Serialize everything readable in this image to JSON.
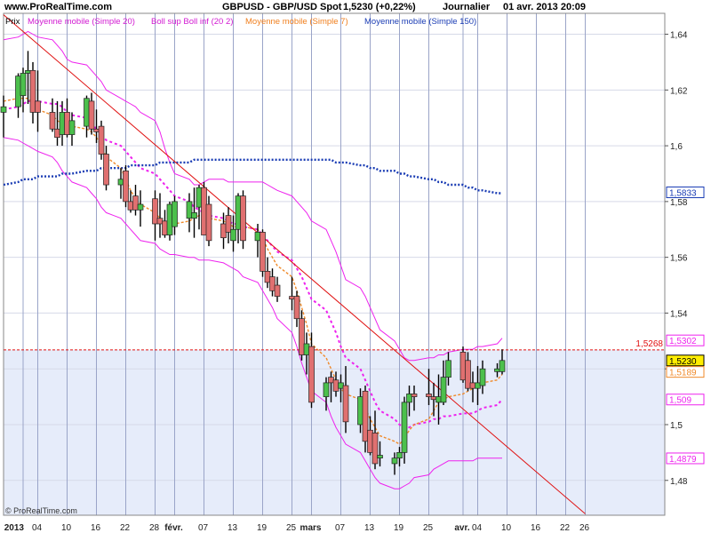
{
  "header": {
    "site": "www.ProRealTime.com",
    "title": "GBPUSD - GBP/USD Spot",
    "quote": "1,5230 (+0,22%)",
    "period": "Journalier",
    "datetime": "01 avr. 2013 20:09"
  },
  "legend": [
    {
      "label": "Prix",
      "color": "#000000"
    },
    {
      "label": "Moyenne mobile (Simple 20)",
      "color": "#d21ad2"
    },
    {
      "label": "Boll sup Boll inf (20 2)",
      "color": "#d21ad2"
    },
    {
      "label": "Moyenne mobile (Simple 7)",
      "color": "#f07f1e"
    },
    {
      "label": "Moyenne mobile (Simple 150)",
      "color": "#1a3cb4"
    }
  ],
  "watermark": "© ProRealTime.com",
  "colors": {
    "up_candle": "#4cc04c",
    "down_candle": "#e07070",
    "sma20": "#ee22ee",
    "bollinger": "#ee22ee",
    "sma7": "#f08a2a",
    "sma150": "#1a3cb4",
    "trendline": "#e01010",
    "hline": "#e01010",
    "vgrid": "#9aa4c8",
    "hgrid": "#d6d9e8",
    "plot_bg": "#ffffff",
    "shade_bg": "#e6ecfa"
  },
  "chart_data": {
    "type": "candlestick",
    "symbol": "GBPUSD",
    "ylim": [
      1.468,
      1.648
    ],
    "yticks": [
      1.48,
      1.5,
      1.52,
      1.54,
      1.56,
      1.58,
      1.6,
      1.62,
      1.64
    ],
    "ytick_labels": [
      "1,48",
      "1,5",
      "1,52",
      "1,54",
      "1,56",
      "1,58",
      "1,6",
      "1,62",
      "1,64"
    ],
    "xticks": [
      {
        "label": "2013",
        "date": "2013-01-01",
        "bold": true
      },
      {
        "label": "04",
        "date": "2013-01-04"
      },
      {
        "label": "10",
        "date": "2013-01-10"
      },
      {
        "label": "16",
        "date": "2013-01-16"
      },
      {
        "label": "22",
        "date": "2013-01-22"
      },
      {
        "label": "28",
        "date": "2013-01-28"
      },
      {
        "label": "févr.",
        "date": "2013-02-01",
        "bold": true
      },
      {
        "label": "07",
        "date": "2013-02-07"
      },
      {
        "label": "13",
        "date": "2013-02-13"
      },
      {
        "label": "19",
        "date": "2013-02-19"
      },
      {
        "label": "25",
        "date": "2013-02-25"
      },
      {
        "label": "mars",
        "date": "2013-03-01",
        "bold": true
      },
      {
        "label": "07",
        "date": "2013-03-07"
      },
      {
        "label": "13",
        "date": "2013-03-13"
      },
      {
        "label": "19",
        "date": "2013-03-19"
      },
      {
        "label": "25",
        "date": "2013-03-25"
      },
      {
        "label": "avr.",
        "date": "2013-04-01",
        "bold": true
      },
      {
        "label": "04",
        "date": "2013-04-04"
      },
      {
        "label": "10",
        "date": "2013-04-10"
      },
      {
        "label": "16",
        "date": "2013-04-16"
      },
      {
        "label": "22",
        "date": "2013-04-22"
      },
      {
        "label": "26",
        "date": "2013-04-26"
      }
    ],
    "candles": [
      {
        "date": "2012-12-28",
        "o": 1.612,
        "h": 1.618,
        "l": 1.603,
        "c": 1.614
      },
      {
        "date": "2012-12-31",
        "o": 1.614,
        "h": 1.626,
        "l": 1.61,
        "c": 1.625
      },
      {
        "date": "2013-01-01",
        "o": 1.618,
        "h": 1.628,
        "l": 1.612,
        "c": 1.626
      },
      {
        "date": "2013-01-02",
        "o": 1.626,
        "h": 1.634,
        "l": 1.615,
        "c": 1.627
      },
      {
        "date": "2013-01-03",
        "o": 1.627,
        "h": 1.63,
        "l": 1.608,
        "c": 1.612
      },
      {
        "date": "2013-01-04",
        "o": 1.616,
        "h": 1.627,
        "l": 1.605,
        "c": 1.612
      },
      {
        "date": "2013-01-07",
        "o": 1.612,
        "h": 1.617,
        "l": 1.605,
        "c": 1.606
      },
      {
        "date": "2013-01-08",
        "o": 1.606,
        "h": 1.616,
        "l": 1.6,
        "c": 1.603
      },
      {
        "date": "2013-01-09",
        "o": 1.604,
        "h": 1.616,
        "l": 1.6,
        "c": 1.612
      },
      {
        "date": "2013-01-10",
        "o": 1.612,
        "h": 1.617,
        "l": 1.603,
        "c": 1.604
      },
      {
        "date": "2013-01-11",
        "o": 1.604,
        "h": 1.612,
        "l": 1.6,
        "c": 1.609
      },
      {
        "date": "2013-01-14",
        "o": 1.607,
        "h": 1.618,
        "l": 1.603,
        "c": 1.617
      },
      {
        "date": "2013-01-15",
        "o": 1.616,
        "h": 1.619,
        "l": 1.604,
        "c": 1.606
      },
      {
        "date": "2013-01-16",
        "o": 1.606,
        "h": 1.613,
        "l": 1.601,
        "c": 1.605
      },
      {
        "date": "2013-01-17",
        "o": 1.607,
        "h": 1.609,
        "l": 1.595,
        "c": 1.597
      },
      {
        "date": "2013-01-18",
        "o": 1.597,
        "h": 1.6,
        "l": 1.584,
        "c": 1.586
      },
      {
        "date": "2013-01-21",
        "o": 1.586,
        "h": 1.592,
        "l": 1.581,
        "c": 1.588
      },
      {
        "date": "2013-01-22",
        "o": 1.591,
        "h": 1.593,
        "l": 1.578,
        "c": 1.58
      },
      {
        "date": "2013-01-23",
        "o": 1.58,
        "h": 1.584,
        "l": 1.576,
        "c": 1.577
      },
      {
        "date": "2013-01-24",
        "o": 1.582,
        "h": 1.586,
        "l": 1.575,
        "c": 1.577
      },
      {
        "date": "2013-01-25",
        "o": 1.577,
        "h": 1.584,
        "l": 1.571,
        "c": 1.579
      },
      {
        "date": "2013-01-28",
        "o": 1.581,
        "h": 1.584,
        "l": 1.566,
        "c": 1.572
      },
      {
        "date": "2013-01-29",
        "o": 1.574,
        "h": 1.583,
        "l": 1.567,
        "c": 1.572
      },
      {
        "date": "2013-01-30",
        "o": 1.573,
        "h": 1.577,
        "l": 1.567,
        "c": 1.568
      },
      {
        "date": "2013-01-31",
        "o": 1.568,
        "h": 1.58,
        "l": 1.566,
        "c": 1.579
      },
      {
        "date": "2013-02-01",
        "o": 1.571,
        "h": 1.582,
        "l": 1.568,
        "c": 1.58
      },
      {
        "date": "2013-02-04",
        "o": 1.574,
        "h": 1.583,
        "l": 1.569,
        "c": 1.58
      },
      {
        "date": "2013-02-05",
        "o": 1.574,
        "h": 1.585,
        "l": 1.567,
        "c": 1.576
      },
      {
        "date": "2013-02-06",
        "o": 1.578,
        "h": 1.586,
        "l": 1.57,
        "c": 1.585
      },
      {
        "date": "2013-02-07",
        "o": 1.585,
        "h": 1.587,
        "l": 1.568,
        "c": 1.568
      },
      {
        "date": "2013-02-08",
        "o": 1.579,
        "h": 1.582,
        "l": 1.564,
        "c": 1.566
      },
      {
        "date": "2013-02-11",
        "o": 1.572,
        "h": 1.576,
        "l": 1.563,
        "c": 1.567
      },
      {
        "date": "2013-02-12",
        "o": 1.575,
        "h": 1.578,
        "l": 1.565,
        "c": 1.569
      },
      {
        "date": "2013-02-13",
        "o": 1.566,
        "h": 1.575,
        "l": 1.562,
        "c": 1.57
      },
      {
        "date": "2013-02-14",
        "o": 1.57,
        "h": 1.583,
        "l": 1.565,
        "c": 1.582
      },
      {
        "date": "2013-02-15",
        "o": 1.582,
        "h": 1.584,
        "l": 1.563,
        "c": 1.566
      },
      {
        "date": "2013-02-18",
        "o": 1.566,
        "h": 1.572,
        "l": 1.56,
        "c": 1.569
      },
      {
        "date": "2013-02-19",
        "o": 1.569,
        "h": 1.57,
        "l": 1.553,
        "c": 1.555
      },
      {
        "date": "2013-02-20",
        "o": 1.555,
        "h": 1.56,
        "l": 1.549,
        "c": 1.551
      },
      {
        "date": "2013-02-21",
        "o": 1.553,
        "h": 1.556,
        "l": 1.546,
        "c": 1.548
      },
      {
        "date": "2013-02-22",
        "o": 1.55,
        "h": 1.553,
        "l": 1.544,
        "c": 1.546
      },
      {
        "date": "2013-02-25",
        "o": 1.546,
        "h": 1.553,
        "l": 1.541,
        "c": 1.545
      },
      {
        "date": "2013-02-26",
        "o": 1.546,
        "h": 1.548,
        "l": 1.535,
        "c": 1.538
      },
      {
        "date": "2013-02-27",
        "o": 1.538,
        "h": 1.541,
        "l": 1.523,
        "c": 1.525
      },
      {
        "date": "2013-02-28",
        "o": 1.525,
        "h": 1.533,
        "l": 1.518,
        "c": 1.529
      },
      {
        "date": "2013-03-01",
        "o": 1.528,
        "h": 1.533,
        "l": 1.506,
        "c": 1.508
      },
      {
        "date": "2013-03-04",
        "o": 1.51,
        "h": 1.517,
        "l": 1.505,
        "c": 1.515
      },
      {
        "date": "2013-03-05",
        "o": 1.517,
        "h": 1.519,
        "l": 1.508,
        "c": 1.515
      },
      {
        "date": "2013-03-06",
        "o": 1.516,
        "h": 1.519,
        "l": 1.51,
        "c": 1.512
      },
      {
        "date": "2013-03-07",
        "o": 1.513,
        "h": 1.518,
        "l": 1.508,
        "c": 1.515
      },
      {
        "date": "2013-03-08",
        "o": 1.514,
        "h": 1.521,
        "l": 1.497,
        "c": 1.501
      },
      {
        "date": "2013-03-11",
        "o": 1.5,
        "h": 1.513,
        "l": 1.497,
        "c": 1.51
      },
      {
        "date": "2013-03-12",
        "o": 1.512,
        "h": 1.514,
        "l": 1.49,
        "c": 1.494
      },
      {
        "date": "2013-03-13",
        "o": 1.498,
        "h": 1.503,
        "l": 1.489,
        "c": 1.49
      },
      {
        "date": "2013-03-14",
        "o": 1.497,
        "h": 1.505,
        "l": 1.484,
        "c": 1.486
      },
      {
        "date": "2013-03-15",
        "o": 1.488,
        "h": 1.494,
        "l": 1.485,
        "c": 1.489
      },
      {
        "date": "2013-03-18",
        "o": 1.486,
        "h": 1.49,
        "l": 1.482,
        "c": 1.488
      },
      {
        "date": "2013-03-19",
        "o": 1.488,
        "h": 1.492,
        "l": 1.485,
        "c": 1.49
      },
      {
        "date": "2013-03-20",
        "o": 1.49,
        "h": 1.51,
        "l": 1.486,
        "c": 1.508
      },
      {
        "date": "2013-03-21",
        "o": 1.508,
        "h": 1.514,
        "l": 1.503,
        "c": 1.511
      },
      {
        "date": "2013-03-22",
        "o": 1.511,
        "h": 1.514,
        "l": 1.505,
        "c": 1.51
      },
      {
        "date": "2013-03-25",
        "o": 1.511,
        "h": 1.52,
        "l": 1.507,
        "c": 1.51
      },
      {
        "date": "2013-03-26",
        "o": 1.51,
        "h": 1.515,
        "l": 1.503,
        "c": 1.509
      },
      {
        "date": "2013-03-27",
        "o": 1.508,
        "h": 1.518,
        "l": 1.5,
        "c": 1.51
      },
      {
        "date": "2013-03-28",
        "o": 1.508,
        "h": 1.523,
        "l": 1.507,
        "c": 1.517
      },
      {
        "date": "2013-03-29",
        "o": 1.517,
        "h": 1.526,
        "l": 1.514,
        "c": 1.523
      },
      {
        "date": "2013-04-01",
        "o": 1.526,
        "h": 1.528,
        "l": 1.515,
        "c": 1.516
      },
      {
        "date": "2013-04-02",
        "o": 1.523,
        "h": 1.526,
        "l": 1.512,
        "c": 1.513
      },
      {
        "date": "2013-04-03",
        "o": 1.515,
        "h": 1.519,
        "l": 1.508,
        "c": 1.513
      },
      {
        "date": "2013-04-04",
        "o": 1.513,
        "h": 1.521,
        "l": 1.507,
        "c": 1.515
      },
      {
        "date": "2013-04-05",
        "o": 1.514,
        "h": 1.523,
        "l": 1.511,
        "c": 1.52
      },
      {
        "date": "2013-04-08",
        "o": 1.519,
        "h": 1.522,
        "l": 1.517,
        "c": 1.52
      },
      {
        "date": "2013-04-09",
        "o": 1.519,
        "h": 1.527,
        "l": 1.518,
        "c": 1.523
      }
    ],
    "sma7": [
      1.616,
      1.617,
      1.617,
      1.617,
      1.615,
      1.613,
      1.611,
      1.609,
      1.608,
      1.607,
      1.607,
      1.606,
      1.605,
      1.603,
      1.6,
      1.596,
      1.592,
      1.588,
      1.584,
      1.581,
      1.579,
      1.576,
      1.574,
      1.573,
      1.572,
      1.572,
      1.573,
      1.574,
      1.575,
      1.575,
      1.574,
      1.573,
      1.572,
      1.571,
      1.571,
      1.571,
      1.57,
      1.567,
      1.563,
      1.56,
      1.557,
      1.553,
      1.548,
      1.542,
      1.536,
      1.529,
      1.524,
      1.52,
      1.516,
      1.513,
      1.511,
      1.509,
      1.506,
      1.502,
      1.499,
      1.496,
      1.494,
      1.493,
      1.495,
      1.498,
      1.5,
      1.502,
      1.505,
      1.508,
      1.509,
      1.51,
      1.511,
      1.512,
      1.513,
      1.514,
      1.515,
      1.516,
      1.518
    ],
    "sma20": [
      1.613,
      1.614,
      1.615,
      1.616,
      1.616,
      1.616,
      1.615,
      1.615,
      1.614,
      1.612,
      1.611,
      1.61,
      1.608,
      1.606,
      1.604,
      1.602,
      1.6,
      1.598,
      1.596,
      1.594,
      1.592,
      1.59,
      1.588,
      1.586,
      1.584,
      1.582,
      1.58,
      1.578,
      1.577,
      1.576,
      1.575,
      1.574,
      1.573,
      1.572,
      1.572,
      1.571,
      1.57,
      1.568,
      1.566,
      1.564,
      1.562,
      1.559,
      1.556,
      1.553,
      1.549,
      1.545,
      1.541,
      1.537,
      1.533,
      1.528,
      1.524,
      1.52,
      1.516,
      1.512,
      1.508,
      1.505,
      1.502,
      1.5,
      1.499,
      1.499,
      1.5,
      1.501,
      1.502,
      1.502,
      1.503,
      1.503,
      1.504,
      1.504,
      1.504,
      1.505,
      1.506,
      1.507,
      1.509
    ],
    "boll_upper": [
      1.638,
      1.639,
      1.64,
      1.641,
      1.64,
      1.639,
      1.638,
      1.636,
      1.634,
      1.631,
      1.63,
      1.629,
      1.627,
      1.625,
      1.623,
      1.62,
      1.617,
      1.616,
      1.615,
      1.614,
      1.612,
      1.609,
      1.605,
      1.599,
      1.594,
      1.59,
      1.588,
      1.586,
      1.586,
      1.587,
      1.588,
      1.588,
      1.587,
      1.587,
      1.587,
      1.587,
      1.587,
      1.587,
      1.586,
      1.585,
      1.584,
      1.582,
      1.58,
      1.578,
      1.576,
      1.573,
      1.57,
      1.566,
      1.562,
      1.557,
      1.552,
      1.549,
      1.546,
      1.542,
      1.538,
      1.534,
      1.53,
      1.527,
      1.524,
      1.523,
      1.523,
      1.524,
      1.524,
      1.525,
      1.525,
      1.526,
      1.527,
      1.527,
      1.527,
      1.528,
      1.528,
      1.529,
      1.531
    ],
    "boll_lower": [
      1.603,
      1.602,
      1.601,
      1.6,
      1.599,
      1.598,
      1.596,
      1.594,
      1.591,
      1.589,
      1.587,
      1.585,
      1.583,
      1.581,
      1.578,
      1.576,
      1.574,
      1.572,
      1.57,
      1.568,
      1.566,
      1.565,
      1.563,
      1.562,
      1.561,
      1.561,
      1.56,
      1.56,
      1.559,
      1.559,
      1.559,
      1.558,
      1.557,
      1.556,
      1.555,
      1.553,
      1.551,
      1.548,
      1.545,
      1.542,
      1.538,
      1.533,
      1.528,
      1.522,
      1.517,
      1.512,
      1.508,
      1.503,
      1.499,
      1.496,
      1.493,
      1.49,
      1.487,
      1.484,
      1.481,
      1.479,
      1.477,
      1.477,
      1.478,
      1.479,
      1.481,
      1.482,
      1.484,
      1.485,
      1.486,
      1.487,
      1.487,
      1.487,
      1.487,
      1.488,
      1.488,
      1.488,
      1.488
    ],
    "sma150": [
      1.586,
      1.587,
      1.588,
      1.588,
      1.588,
      1.589,
      1.589,
      1.589,
      1.59,
      1.59,
      1.59,
      1.591,
      1.591,
      1.591,
      1.592,
      1.592,
      1.592,
      1.592,
      1.593,
      1.593,
      1.593,
      1.593,
      1.594,
      1.594,
      1.594,
      1.594,
      1.594,
      1.595,
      1.595,
      1.595,
      1.595,
      1.595,
      1.595,
      1.595,
      1.595,
      1.595,
      1.595,
      1.595,
      1.595,
      1.595,
      1.595,
      1.595,
      1.595,
      1.595,
      1.595,
      1.595,
      1.595,
      1.595,
      1.594,
      1.594,
      1.594,
      1.593,
      1.593,
      1.592,
      1.592,
      1.591,
      1.591,
      1.59,
      1.59,
      1.589,
      1.589,
      1.588,
      1.588,
      1.587,
      1.587,
      1.586,
      1.586,
      1.585,
      1.585,
      1.584,
      1.584,
      1.583,
      1.583
    ],
    "trendline": {
      "from": {
        "date": "2012-12-28",
        "price": 1.647
      },
      "to": {
        "date": "2013-04-26",
        "price": 1.468
      }
    },
    "hline": {
      "value": 1.5268,
      "label": "1,5268"
    },
    "price_tags": [
      {
        "label": "1,5833",
        "value": 1.5833,
        "series": "sma150"
      },
      {
        "label": "1,5302",
        "value": 1.5302,
        "series": "boll_upper"
      },
      {
        "label": "1,5230",
        "value": 1.523,
        "series": "price"
      },
      {
        "label": "1,5189",
        "value": 1.5189,
        "series": "sma7"
      },
      {
        "label": "1,509",
        "value": 1.509,
        "series": "sma20"
      },
      {
        "label": "1,4879",
        "value": 1.4879,
        "series": "boll_lower"
      }
    ]
  }
}
